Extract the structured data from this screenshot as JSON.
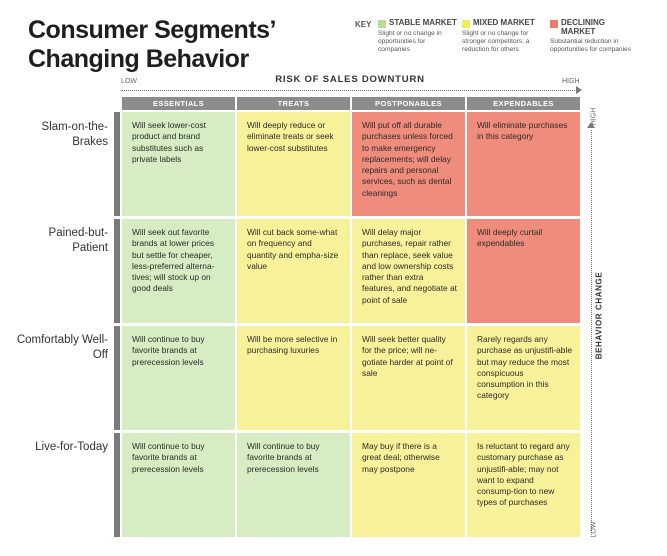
{
  "title_line1": "Consumer Segments’",
  "title_line2": "Changing Behavior",
  "key_label": "KEY",
  "legend": [
    {
      "name": "STABLE MARKET",
      "desc": "Slight or no change in opportunities for companies",
      "color": "#b9dc98"
    },
    {
      "name": "MIXED MARKET",
      "desc": "Slight or no change for stronger competitors; a reduction for others",
      "color": "#f4ec5c"
    },
    {
      "name": "DECLINING MARKET",
      "desc": "Substantial reduction in opportunities for companies",
      "color": "#ec7a6a"
    }
  ],
  "x_axis": {
    "title": "RISK OF SALES DOWNTURN",
    "low": "LOW",
    "high": "HIGH"
  },
  "y_axis": {
    "title": "BEHAVIOR CHANGE",
    "low": "LOW",
    "high": "HIGH"
  },
  "columns": [
    "ESSENTIALS",
    "TREATS",
    "POSTPONABLES",
    "EXPENDABLES"
  ],
  "rows": [
    {
      "label": "Slam-on-the-Brakes"
    },
    {
      "label": "Pained-but-Patient"
    },
    {
      "label": "Comfortably Well-Off"
    },
    {
      "label": "Live-for-Today"
    }
  ],
  "cells": [
    [
      "Will seek lower-cost product and brand substitutes such as private labels",
      "Will deeply reduce or eliminate treats or seek lower-cost substitutes",
      "Will put off all durable purchases unless forced to make emergency replacements; will delay repairs and personal services, such as dental cleanings",
      "Will eliminate purchases in this category"
    ],
    [
      "Will seek out favorite brands at lower prices but settle for cheaper, less-preferred alterna-tives; will stock up on good deals",
      "Will cut back some-what on frequency and quantity and empha-size value",
      "Will delay major purchases, repair rather than replace, seek value and low ownership costs rather than extra features, and negotiate at point of sale",
      "Will deeply curtail expendables"
    ],
    [
      "Will continue to buy favorite brands at prerecession levels",
      "Will be more selective in purchasing luxuries",
      "Will seek better quality for the price; will ne-gotiate harder at point of sale",
      "Rarely regards any purchase as unjustifi-able but may reduce the most conspicuous consumption in this category"
    ],
    [
      "Will continue to buy favorite brands at prerecession levels",
      "Will continue to buy favorite brands at prerecession levels",
      "May buy if there is a great deal; otherwise may postpone",
      "Is reluctant to regard any customary purchase as unjustifi-able; may not want to expand consump-tion to new types of purchases"
    ]
  ],
  "cell_markets": [
    [
      "green",
      "yellow",
      "red",
      "red"
    ],
    [
      "green",
      "yellow",
      "yellow",
      "red"
    ],
    [
      "green",
      "yellow",
      "yellow",
      "yellow"
    ],
    [
      "green",
      "green",
      "yellow",
      "yellow"
    ]
  ]
}
